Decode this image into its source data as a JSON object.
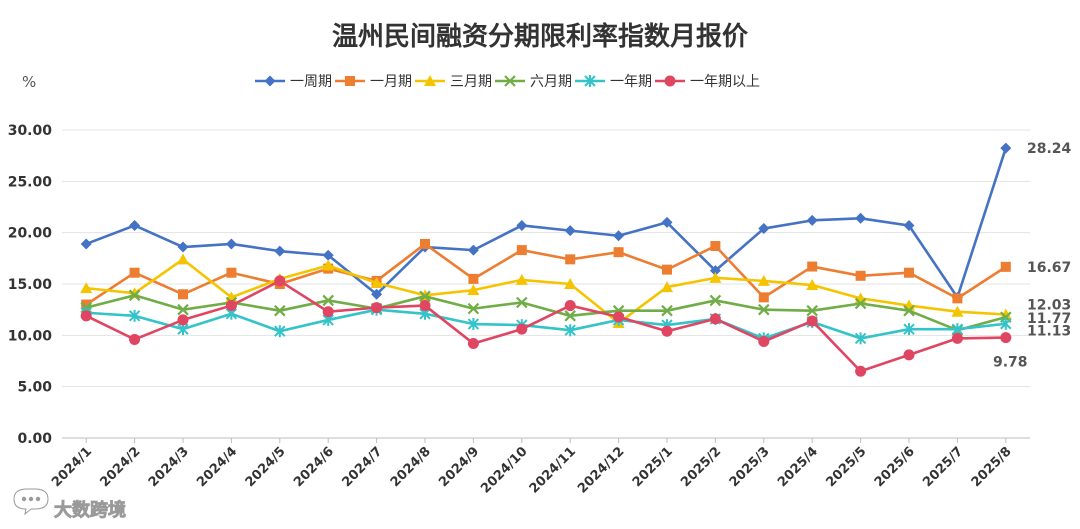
{
  "chart_data": {
    "type": "line",
    "title": "温州民间融资分期限利率指数月报价",
    "ylabel": "%",
    "xlabel": "",
    "ylim": [
      0,
      30
    ],
    "yticks": [
      "0.00",
      "5.00",
      "10.00",
      "15.00",
      "20.00",
      "25.00",
      "30.00"
    ],
    "grid": true,
    "legend_position": "top",
    "categories": [
      "2024/1",
      "2024/2",
      "2024/3",
      "2024/4",
      "2024/5",
      "2024/6",
      "2024/7",
      "2024/8",
      "2024/9",
      "2024/10",
      "2024/11",
      "2024/12",
      "2025/1",
      "2025/2",
      "2025/3",
      "2025/4",
      "2025/5",
      "2025/6",
      "2025/7",
      "2025/8"
    ],
    "series": [
      {
        "name": "一周期",
        "color": "#4472C4",
        "marker": "diamond",
        "values": [
          18.9,
          20.7,
          18.6,
          18.9,
          18.2,
          17.8,
          14.0,
          18.6,
          18.3,
          20.7,
          20.2,
          19.7,
          21.0,
          16.3,
          20.4,
          21.2,
          21.4,
          20.7,
          13.7,
          28.24
        ]
      },
      {
        "name": "一月期",
        "color": "#ED7D31",
        "marker": "square",
        "values": [
          13.0,
          16.1,
          14.0,
          16.1,
          15.0,
          16.5,
          15.3,
          18.9,
          15.5,
          18.3,
          17.4,
          18.1,
          16.4,
          18.7,
          13.7,
          16.7,
          15.8,
          16.1,
          13.6,
          16.67
        ]
      },
      {
        "name": "三月期",
        "color": "#F5C400",
        "marker": "triangle",
        "values": [
          14.6,
          14.1,
          17.4,
          13.7,
          15.5,
          16.8,
          15.1,
          13.9,
          14.4,
          15.4,
          15.0,
          11.2,
          14.7,
          15.6,
          15.3,
          14.9,
          13.6,
          12.9,
          12.3,
          12.03
        ]
      },
      {
        "name": "六月期",
        "color": "#70AD47",
        "marker": "x",
        "values": [
          12.7,
          13.9,
          12.5,
          13.2,
          12.4,
          13.4,
          12.6,
          13.8,
          12.6,
          13.2,
          11.9,
          12.4,
          12.4,
          13.4,
          12.5,
          12.4,
          13.1,
          12.4,
          10.5,
          11.77
        ]
      },
      {
        "name": "一年期",
        "color": "#33C3C9",
        "marker": "asterisk",
        "values": [
          12.2,
          11.9,
          10.6,
          12.1,
          10.4,
          11.5,
          12.5,
          12.1,
          11.1,
          11.0,
          10.5,
          11.5,
          11.0,
          11.6,
          9.7,
          11.3,
          9.7,
          10.6,
          10.6,
          11.13
        ]
      },
      {
        "name": "一年期以上",
        "color": "#E04562",
        "marker": "circle",
        "values": [
          11.9,
          9.6,
          11.5,
          12.9,
          15.3,
          12.3,
          12.7,
          12.9,
          9.2,
          10.6,
          12.9,
          11.8,
          10.4,
          11.6,
          9.4,
          11.4,
          6.5,
          8.1,
          9.7,
          9.78
        ]
      }
    ],
    "end_labels": [
      {
        "series": 0,
        "text": "28.24"
      },
      {
        "series": 1,
        "text": "16.67"
      },
      {
        "series": 2,
        "text": "12.03"
      },
      {
        "series": 3,
        "text": "11.77"
      },
      {
        "series": 4,
        "text": "11.13"
      },
      {
        "series": 5,
        "text": "9.78"
      }
    ]
  },
  "watermark": {
    "text": "大数跨境",
    "icon": "chat-bubble-logo-icon"
  }
}
